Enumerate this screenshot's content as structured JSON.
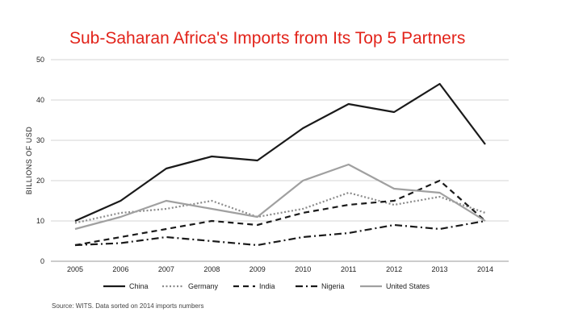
{
  "chart_data": {
    "type": "line",
    "title": "Sub-Saharan Africa's Imports from Its Top 5 Partners",
    "ylabel": "BILLIONS OF USD",
    "xlabel": "",
    "x": [
      "2005",
      "2006",
      "2007",
      "2008",
      "2009",
      "2010",
      "2011",
      "2012",
      "2013",
      "2014"
    ],
    "ylim": [
      0,
      50
    ],
    "yticks": [
      0,
      10,
      20,
      30,
      40,
      50
    ],
    "grid": true,
    "legend_position": "bottom",
    "series": [
      {
        "name": "China",
        "values": [
          10,
          15,
          23,
          26,
          25,
          33,
          39,
          37,
          44,
          29
        ],
        "color": "#1a1a1a",
        "dash": "solid"
      },
      {
        "name": "Germany",
        "values": [
          9.5,
          12,
          13,
          15,
          11,
          13,
          17,
          14,
          16,
          12
        ],
        "color": "#8a8a8a",
        "dash": "dotted"
      },
      {
        "name": "India",
        "values": [
          4,
          6,
          8,
          10,
          9,
          12,
          14,
          15,
          20,
          10
        ],
        "color": "#1a1a1a",
        "dash": "dashed"
      },
      {
        "name": "Nigeria",
        "values": [
          4,
          4.5,
          6,
          5,
          4,
          6,
          7,
          9,
          8,
          10
        ],
        "color": "#1a1a1a",
        "dash": "dashdot"
      },
      {
        "name": "United States",
        "values": [
          8,
          11,
          15,
          13,
          11,
          20,
          24,
          18,
          17,
          10
        ],
        "color": "#a0a0a0",
        "dash": "solid"
      }
    ],
    "source": "Source: WITS. Data sorted on 2014 imports numbers"
  }
}
